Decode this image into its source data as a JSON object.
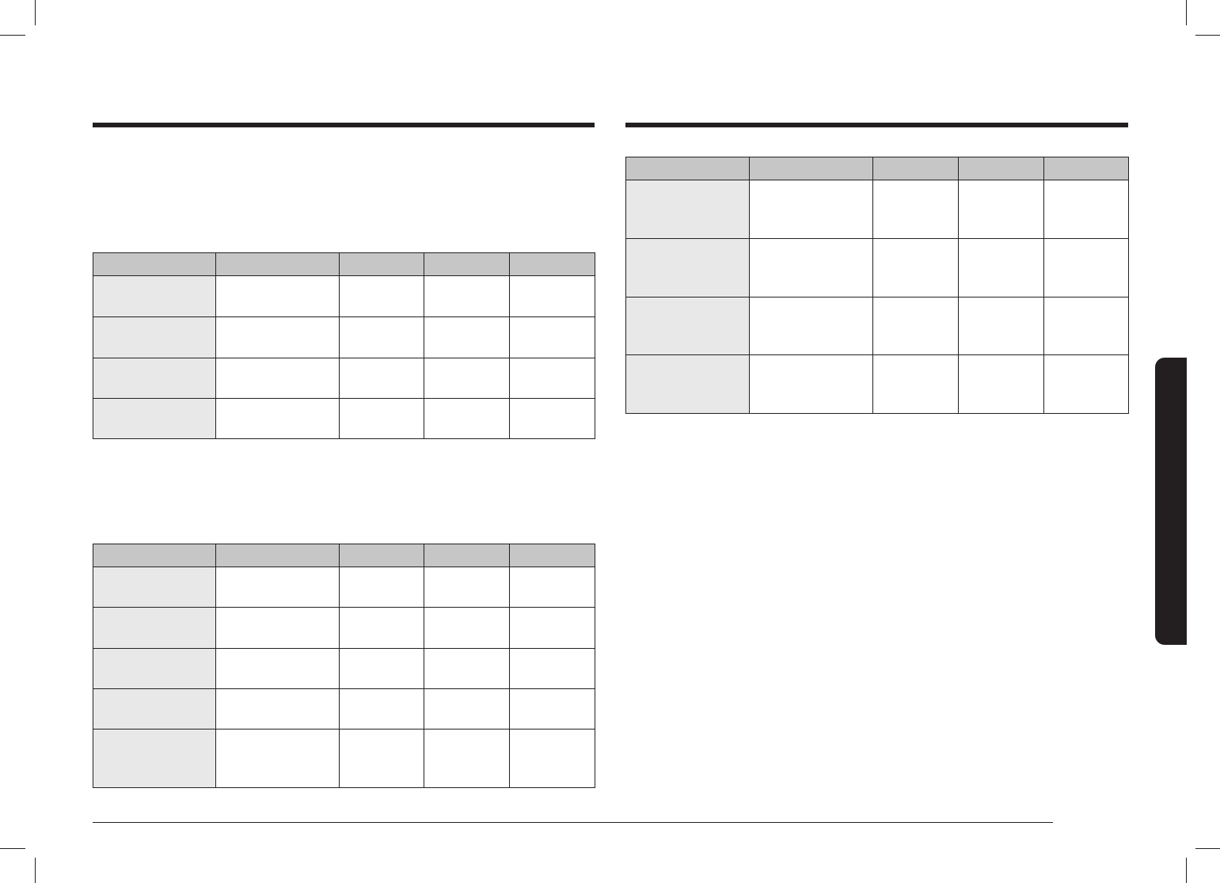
{
  "colors": {
    "ink": "#231f20",
    "header_fill": "#c6c6c6",
    "first_column_fill": "#e8e8e8",
    "side_tab": "#231f20"
  },
  "left_section": {
    "heading": "",
    "table_1": {
      "headers": [
        "",
        "",
        "",
        "",
        ""
      ],
      "rows": [
        [
          "",
          "",
          "",
          "",
          ""
        ],
        [
          "",
          "",
          "",
          "",
          ""
        ],
        [
          "",
          "",
          "",
          "",
          ""
        ],
        [
          "",
          "",
          "",
          "",
          ""
        ]
      ]
    },
    "table_2": {
      "headers": [
        "",
        "",
        "",
        "",
        ""
      ],
      "rows": [
        [
          "",
          "",
          "",
          "",
          ""
        ],
        [
          "",
          "",
          "",
          "",
          ""
        ],
        [
          "",
          "",
          "",
          "",
          ""
        ],
        [
          "",
          "",
          "",
          "",
          ""
        ],
        [
          "",
          "",
          "",
          "",
          ""
        ]
      ]
    }
  },
  "right_section": {
    "heading": "",
    "table_1": {
      "headers": [
        "",
        "",
        "",
        "",
        ""
      ],
      "rows": [
        [
          "",
          "",
          "",
          "",
          ""
        ],
        [
          "",
          "",
          "",
          "",
          ""
        ],
        [
          "",
          "",
          "",
          "",
          ""
        ],
        [
          "",
          "",
          "",
          "",
          ""
        ]
      ]
    }
  },
  "side_tab": {
    "label": ""
  },
  "footer": {
    "page_number": ""
  }
}
